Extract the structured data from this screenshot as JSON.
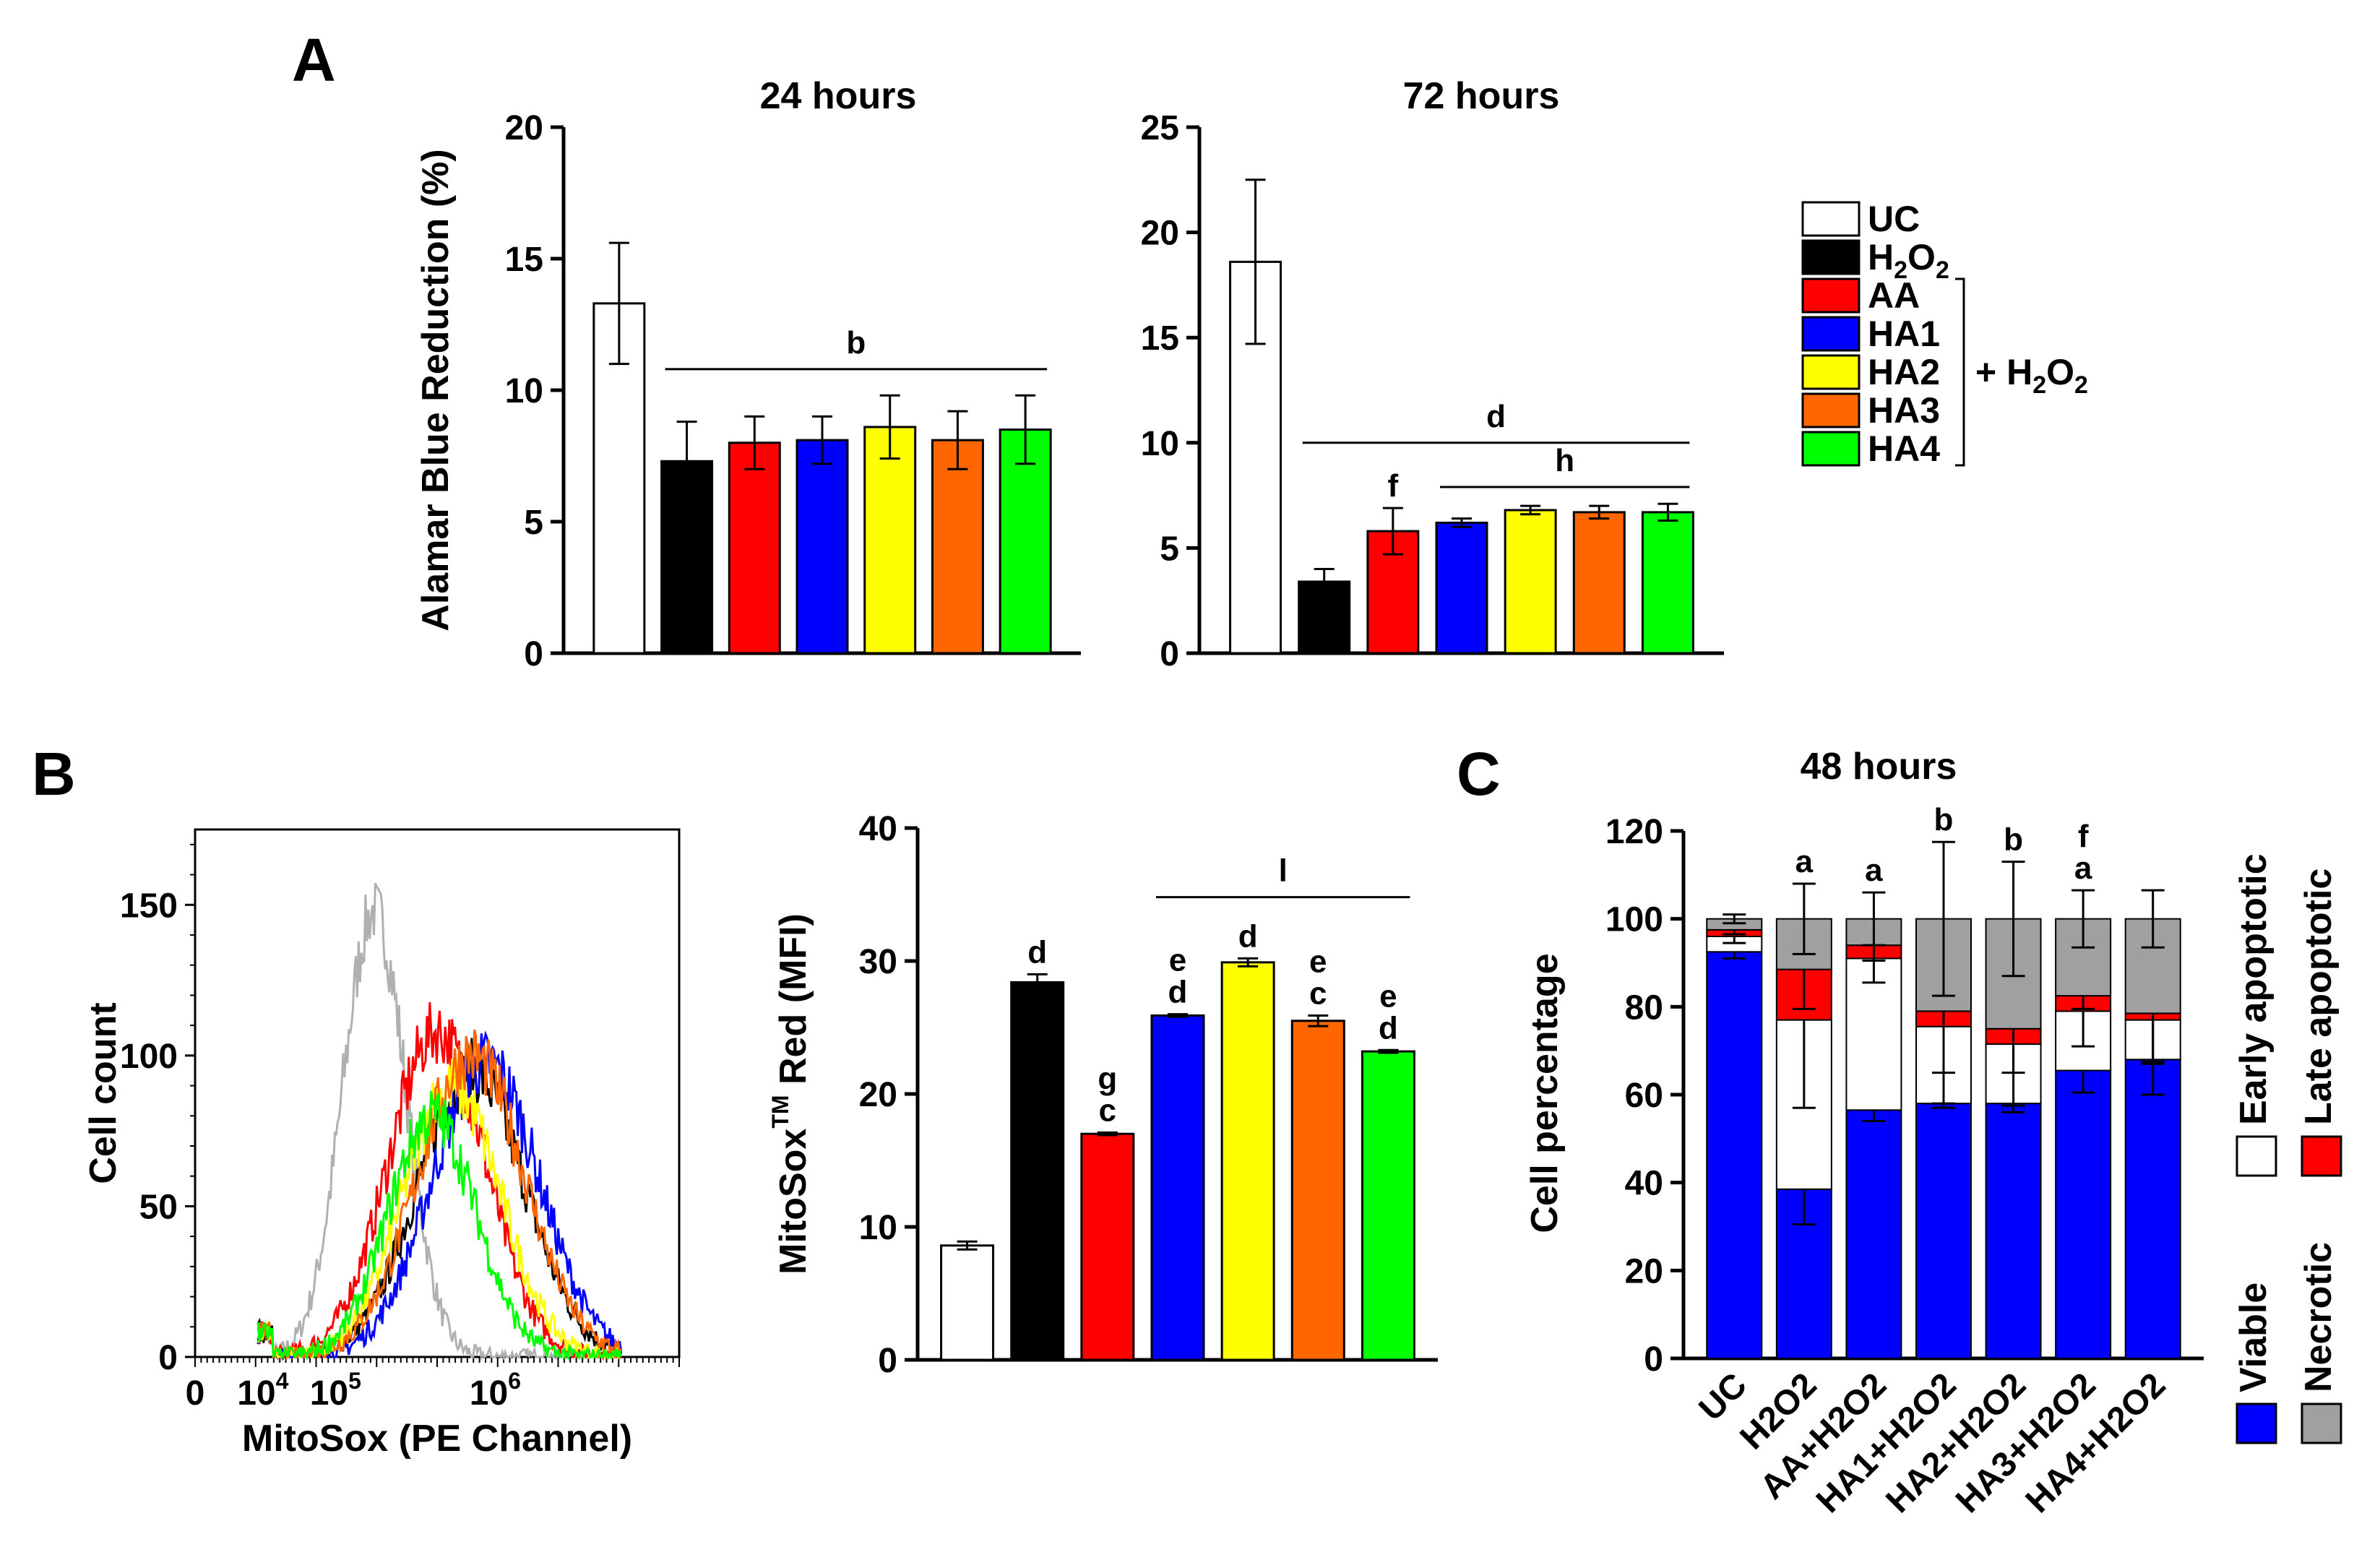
{
  "panel_labels": {
    "a": "A",
    "b": "B",
    "c": "C"
  },
  "colors": {
    "UC": "#ffffff",
    "H2O2": "#000000",
    "AA": "#ff0000",
    "HA1": "#0000ff",
    "HA2": "#ffff00",
    "HA3": "#ff6600",
    "HA4": "#00ff00",
    "necrotic": "#a0a0a0",
    "uc_hist": "#b0b0b0"
  },
  "legend": {
    "groups": [
      "UC",
      "H2O2",
      "AA",
      "HA1",
      "HA2",
      "HA3",
      "HA4"
    ],
    "labels": {
      "UC": "UC",
      "H2O2": "H",
      "AA": "AA",
      "HA1": "HA1",
      "HA2": "HA2",
      "HA3": "HA3",
      "HA4": "HA4"
    },
    "bracket_label": "+ H",
    "subscript_2": "2",
    "letter_O": "O"
  },
  "chart_data": [
    {
      "id": "A-24h",
      "type": "bar",
      "title": "24 hours",
      "ylabel": "Alamar Blue Reduction (%)",
      "ylim": [
        0,
        20
      ],
      "yticks": [
        0,
        5,
        10,
        15,
        20
      ],
      "categories": [
        "UC",
        "H2O2",
        "AA",
        "HA1",
        "HA2",
        "HA3",
        "HA4"
      ],
      "values": [
        13.3,
        7.3,
        8.0,
        8.1,
        8.6,
        8.1,
        8.5
      ],
      "errors": [
        2.3,
        1.5,
        1.0,
        0.9,
        1.2,
        1.1,
        1.3
      ],
      "significance": [
        {
          "label": "b",
          "from": "H2O2",
          "to": "HA4",
          "y": 10.8
        }
      ]
    },
    {
      "id": "A-72h",
      "type": "bar",
      "title": "72 hours",
      "ylabel": "",
      "ylim": [
        0,
        25
      ],
      "yticks": [
        0,
        5,
        10,
        15,
        20,
        25
      ],
      "categories": [
        "UC",
        "H2O2",
        "AA",
        "HA1",
        "HA2",
        "HA3",
        "HA4"
      ],
      "values": [
        18.6,
        3.4,
        5.8,
        6.2,
        6.8,
        6.7,
        6.7
      ],
      "errors": [
        3.9,
        0.6,
        1.1,
        0.2,
        0.2,
        0.3,
        0.4
      ],
      "significance": [
        {
          "label": "d",
          "from": "H2O2",
          "to": "HA4",
          "y": 10.0
        },
        {
          "label": "h",
          "from": "HA1",
          "to": "HA4",
          "y": 7.9
        }
      ],
      "bar_letters": [
        {
          "category": "AA",
          "labels": [
            "f"
          ]
        }
      ]
    },
    {
      "id": "B-histogram",
      "type": "line",
      "title": "",
      "xlabel": "MitoSox (PE Channel)",
      "ylabel": "Cell count",
      "ylim": [
        0,
        175
      ],
      "yticks": [
        0,
        50,
        100,
        150
      ],
      "xticks": [
        {
          "label": "0",
          "pos": 0.0
        },
        {
          "label": "10",
          "sup": "4",
          "pos": 0.14
        },
        {
          "label": "10",
          "sup": "5",
          "pos": 0.29
        },
        {
          "label": "10",
          "sup": "6",
          "pos": 0.62
        }
      ],
      "series": [
        {
          "name": "UC",
          "peak_x": 0.37,
          "peak_y": 148,
          "width": 0.065
        },
        {
          "name": "H2O2",
          "peak_x": 0.57,
          "peak_y": 95,
          "width": 0.11
        },
        {
          "name": "AA",
          "peak_x": 0.5,
          "peak_y": 108,
          "width": 0.1
        },
        {
          "name": "HA1",
          "peak_x": 0.6,
          "peak_y": 98,
          "width": 0.11
        },
        {
          "name": "HA2",
          "peak_x": 0.53,
          "peak_y": 90,
          "width": 0.1
        },
        {
          "name": "HA3",
          "peak_x": 0.57,
          "peak_y": 100,
          "width": 0.11
        },
        {
          "name": "HA4",
          "peak_x": 0.49,
          "peak_y": 80,
          "width": 0.09
        }
      ]
    },
    {
      "id": "B-bar",
      "type": "bar",
      "title": "",
      "ylabel": "MitoSox",
      "ylabel_sup": "TM",
      "ylabel_rest": " Red (MFI)",
      "ylim": [
        0,
        40
      ],
      "yticks": [
        0,
        10,
        20,
        30,
        40
      ],
      "categories": [
        "UC",
        "H2O2",
        "AA",
        "HA1",
        "HA2",
        "HA3",
        "HA4"
      ],
      "values": [
        8.6,
        28.4,
        17.0,
        25.9,
        29.9,
        25.5,
        23.2
      ],
      "errors": [
        0.3,
        0.6,
        0.1,
        0.1,
        0.3,
        0.4,
        0.1
      ],
      "bar_letters": [
        {
          "category": "H2O2",
          "labels": [
            "d"
          ]
        },
        {
          "category": "AA",
          "labels": [
            "g",
            "c"
          ]
        },
        {
          "category": "HA1",
          "labels": [
            "e",
            "d"
          ]
        },
        {
          "category": "HA2",
          "labels": [
            "d"
          ]
        },
        {
          "category": "HA3",
          "labels": [
            "e",
            "c"
          ]
        },
        {
          "category": "HA4",
          "labels": [
            "e",
            "d"
          ]
        }
      ],
      "significance": [
        {
          "label": "l",
          "from": "HA1",
          "to": "HA4",
          "y": 34.8
        }
      ]
    },
    {
      "id": "C-stacked",
      "type": "bar",
      "stacked": true,
      "title": "48 hours",
      "ylabel": "Cell percentage",
      "ylim": [
        0,
        120
      ],
      "yticks": [
        0,
        20,
        40,
        60,
        80,
        100,
        120
      ],
      "categories": [
        "UC",
        "H2O2",
        "AA+H2O2",
        "HA1+H2O2",
        "HA2+H2O2",
        "HA3+H2O2",
        "HA4+H2O2"
      ],
      "series": [
        {
          "name": "Viable",
          "values": [
            92.5,
            38.5,
            56.5,
            58.0,
            58.0,
            65.5,
            68.0
          ],
          "errors": [
            1.5,
            8.0,
            2.5,
            1.0,
            2.0,
            5.0,
            8.0
          ]
        },
        {
          "name": "Early apoptotic",
          "values": [
            3.5,
            38.5,
            34.5,
            17.5,
            13.5,
            13.5,
            9.0
          ],
          "errors": [
            1.5,
            20.0,
            5.5,
            17.5,
            14.0,
            8.0,
            10.0
          ]
        },
        {
          "name": "Late apoptotic",
          "values": [
            1.5,
            11.5,
            3.0,
            3.5,
            3.5,
            3.5,
            1.5
          ],
          "errors": [
            1.0,
            9.0,
            3.5,
            14.0,
            10.0,
            3.0,
            11.0
          ]
        },
        {
          "name": "Necrotic",
          "values": [
            2.5,
            11.5,
            6.0,
            21.0,
            25.0,
            17.5,
            21.5
          ],
          "errors": [
            1.0,
            8.0,
            6.0,
            17.5,
            13.0,
            6.5,
            6.5
          ]
        }
      ],
      "bar_letters": [
        {
          "category": "H2O2",
          "labels": [
            "a"
          ]
        },
        {
          "category": "AA+H2O2",
          "labels": [
            "a"
          ]
        },
        {
          "category": "HA1+H2O2",
          "labels": [
            "b"
          ]
        },
        {
          "category": "HA2+H2O2",
          "labels": [
            "b"
          ]
        },
        {
          "category": "HA3+H2O2",
          "labels": [
            "f",
            "a"
          ]
        }
      ],
      "legend": [
        "Viable",
        "Necrotic",
        "Early apoptotic",
        "Late apoptotic"
      ]
    }
  ]
}
